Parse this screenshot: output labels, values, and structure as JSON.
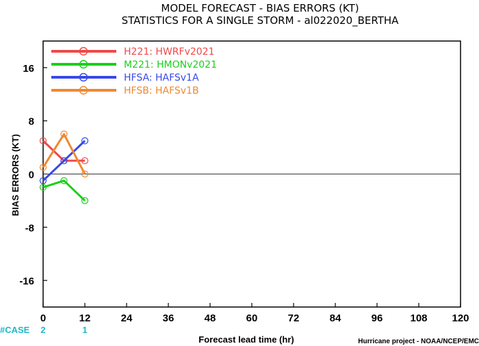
{
  "title_line1": "MODEL FORECAST - BIAS ERRORS (KT)",
  "title_line2": "STATISTICS FOR A SINGLE STORM - al022020_BERTHA",
  "case_label": "#CASE",
  "credit": "Hurricane project - NOAA/NCEP/EMC",
  "case_color": "#20b8c8",
  "chart_data": {
    "type": "line",
    "title": "MODEL FORECAST - BIAS ERRORS (KT)",
    "subtitle": "STATISTICS FOR A SINGLE STORM - al022020_BERTHA",
    "xlabel": "Forecast lead time (hr)",
    "ylabel": "BIAS ERRORS (KT)",
    "xlim": [
      0,
      120
    ],
    "ylim": [
      -20,
      20
    ],
    "xticks": [
      0,
      12,
      24,
      36,
      48,
      60,
      72,
      84,
      96,
      108,
      120
    ],
    "yticks": [
      16,
      8,
      0,
      -8,
      -16
    ],
    "ytick_labels": [
      "16",
      "8",
      "0",
      "-8",
      "-16"
    ],
    "zero_line": true,
    "grid": false,
    "legend_position": "top-left",
    "series": [
      {
        "name": "H221: HWRFv2021",
        "color": "#f04848",
        "x": [
          0,
          6,
          12
        ],
        "y": [
          5,
          2,
          2
        ]
      },
      {
        "name": "M221: HMONv2021",
        "color": "#18d018",
        "x": [
          0,
          6,
          12
        ],
        "y": [
          -2,
          -1,
          -4
        ]
      },
      {
        "name": "HFSA: HAFSv1A",
        "color": "#3848e8",
        "x": [
          0,
          6,
          12
        ],
        "y": [
          -1,
          2,
          5
        ]
      },
      {
        "name": "HFSB: HAFSv1B",
        "color": "#f08830",
        "x": [
          0,
          6,
          12
        ],
        "y": [
          1,
          6,
          0
        ]
      }
    ],
    "cases": [
      {
        "x": 0,
        "count": "2"
      },
      {
        "x": 12,
        "count": "1"
      }
    ]
  }
}
